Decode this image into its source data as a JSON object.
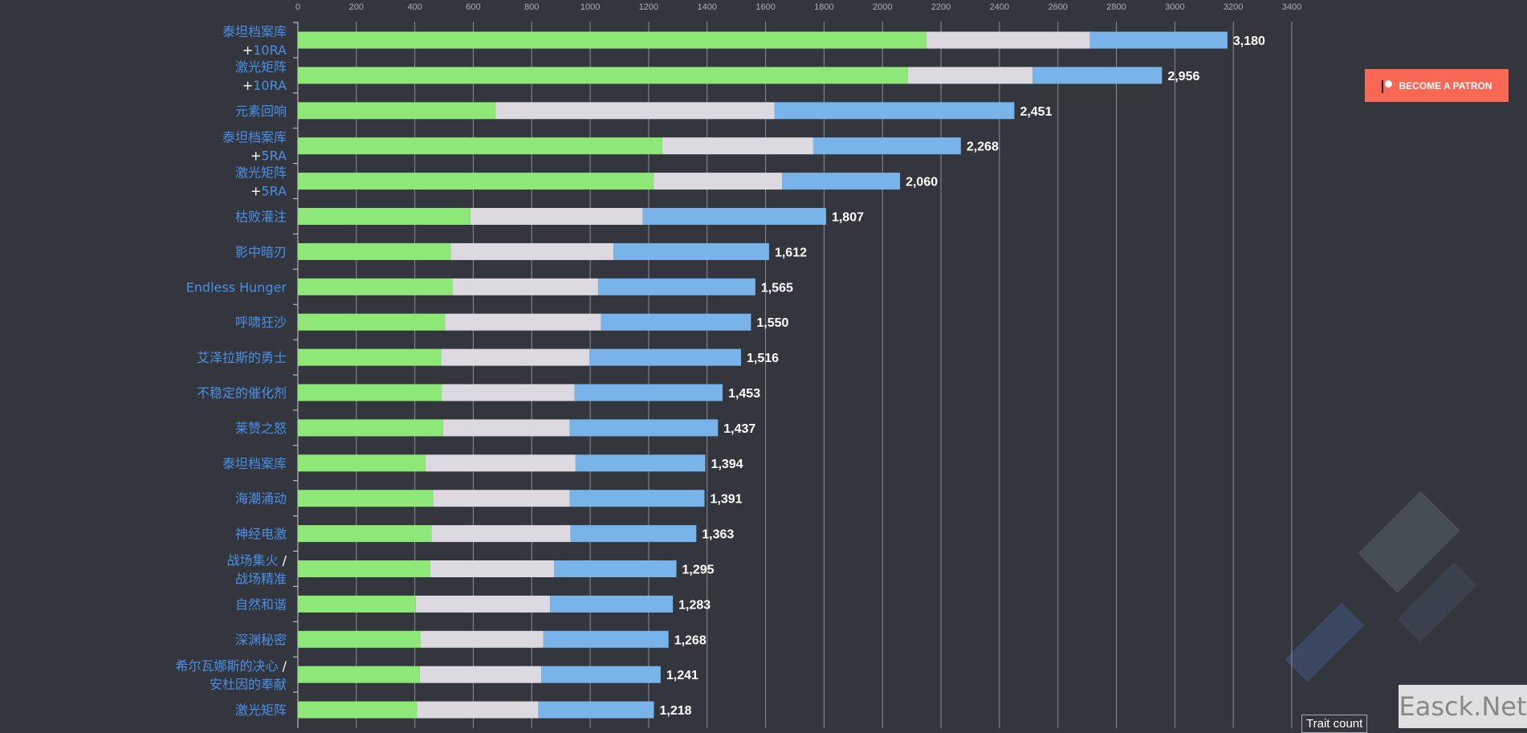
{
  "chart_data": {
    "type": "bar",
    "orientation": "horizontal",
    "stacked": true,
    "xlim": [
      0,
      3400
    ],
    "xticks": [
      0,
      200,
      400,
      600,
      800,
      1000,
      1200,
      1400,
      1600,
      1800,
      2000,
      2200,
      2400,
      2600,
      2800,
      3000,
      3200,
      3400
    ],
    "grid": true,
    "colors": [
      "#8ee877",
      "#dcdae0",
      "#78b4ea"
    ],
    "categories": [
      [
        "泰坦档案库",
        "+10RA"
      ],
      [
        "激光矩阵",
        "+10RA"
      ],
      [
        "元素回响"
      ],
      [
        "泰坦档案库",
        "+5RA"
      ],
      [
        "激光矩阵",
        "+5RA"
      ],
      [
        "枯败灌注"
      ],
      [
        "影中暗刃"
      ],
      [
        "Endless Hunger"
      ],
      [
        "呼啸狂沙"
      ],
      [
        "艾泽拉斯的勇士"
      ],
      [
        "不稳定的催化剂"
      ],
      [
        "莱赞之怒"
      ],
      [
        "泰坦档案库"
      ],
      [
        "海潮涌动"
      ],
      [
        "神经电激"
      ],
      [
        "战场集火 /",
        "战场精准"
      ],
      [
        "自然和谐"
      ],
      [
        "深渊秘密"
      ],
      [
        "希尔瓦娜斯的决心 /",
        "安杜因的奉献"
      ],
      [
        "激光矩阵"
      ]
    ],
    "series": [
      {
        "values": [
          2150,
          2087,
          677,
          1247,
          1217,
          590,
          523,
          530,
          503,
          490,
          493,
          497,
          437,
          463,
          457,
          453,
          403,
          420,
          417,
          407
        ]
      },
      {
        "values": [
          560,
          426,
          953,
          516,
          440,
          590,
          557,
          497,
          534,
          507,
          454,
          433,
          513,
          467,
          476,
          424,
          460,
          420,
          416,
          416
        ]
      },
      {
        "values": [
          470,
          443,
          821,
          505,
          403,
          627,
          532,
          538,
          513,
          519,
          506,
          507,
          444,
          461,
          430,
          418,
          420,
          428,
          408,
          395
        ]
      }
    ],
    "totals": [
      "3,180",
      "2,956",
      "2,451",
      "2,268",
      "2,060",
      "1,807",
      "1,612",
      "1,565",
      "1,550",
      "1,516",
      "1,453",
      "1,437",
      "1,394",
      "1,391",
      "1,363",
      "1,295",
      "1,283",
      "1,268",
      "1,241",
      "1,218"
    ],
    "legend_title": "Trait count"
  },
  "patron_button": {
    "label": "BECOME A PATRON",
    "color": "#f96854"
  },
  "watermark": "Easck.Net"
}
